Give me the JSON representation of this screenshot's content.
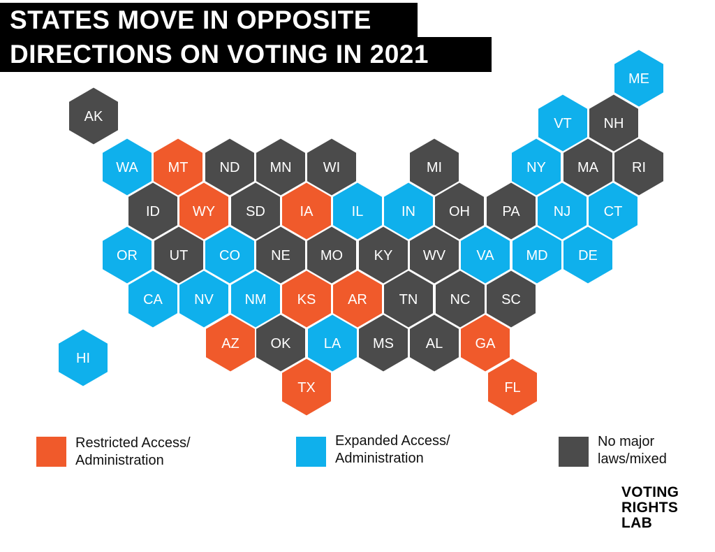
{
  "title": {
    "line1": "STATES MOVE IN OPPOSITE",
    "line2": "DIRECTIONS ON VOTING IN 2021"
  },
  "colors": {
    "restricted": "#f05a2b",
    "expanded": "#0fb0ec",
    "mixed": "#4b4b4b"
  },
  "states": [
    {
      "abbr": "AK",
      "category": "mixed"
    },
    {
      "abbr": "ME",
      "category": "expanded"
    },
    {
      "abbr": "VT",
      "category": "expanded"
    },
    {
      "abbr": "NH",
      "category": "mixed"
    },
    {
      "abbr": "WA",
      "category": "expanded"
    },
    {
      "abbr": "MT",
      "category": "restricted"
    },
    {
      "abbr": "ND",
      "category": "mixed"
    },
    {
      "abbr": "MN",
      "category": "mixed"
    },
    {
      "abbr": "WI",
      "category": "mixed"
    },
    {
      "abbr": "MI",
      "category": "mixed"
    },
    {
      "abbr": "NY",
      "category": "expanded"
    },
    {
      "abbr": "MA",
      "category": "mixed"
    },
    {
      "abbr": "RI",
      "category": "mixed"
    },
    {
      "abbr": "ID",
      "category": "mixed"
    },
    {
      "abbr": "WY",
      "category": "restricted"
    },
    {
      "abbr": "SD",
      "category": "mixed"
    },
    {
      "abbr": "IA",
      "category": "restricted"
    },
    {
      "abbr": "IL",
      "category": "expanded"
    },
    {
      "abbr": "IN",
      "category": "expanded"
    },
    {
      "abbr": "OH",
      "category": "mixed"
    },
    {
      "abbr": "PA",
      "category": "mixed"
    },
    {
      "abbr": "NJ",
      "category": "expanded"
    },
    {
      "abbr": "CT",
      "category": "expanded"
    },
    {
      "abbr": "OR",
      "category": "expanded"
    },
    {
      "abbr": "UT",
      "category": "mixed"
    },
    {
      "abbr": "CO",
      "category": "expanded"
    },
    {
      "abbr": "NE",
      "category": "mixed"
    },
    {
      "abbr": "MO",
      "category": "mixed"
    },
    {
      "abbr": "KY",
      "category": "mixed"
    },
    {
      "abbr": "WV",
      "category": "mixed"
    },
    {
      "abbr": "VA",
      "category": "expanded"
    },
    {
      "abbr": "MD",
      "category": "expanded"
    },
    {
      "abbr": "DE",
      "category": "expanded"
    },
    {
      "abbr": "CA",
      "category": "expanded"
    },
    {
      "abbr": "NV",
      "category": "expanded"
    },
    {
      "abbr": "NM",
      "category": "expanded"
    },
    {
      "abbr": "KS",
      "category": "restricted"
    },
    {
      "abbr": "AR",
      "category": "restricted"
    },
    {
      "abbr": "TN",
      "category": "mixed"
    },
    {
      "abbr": "NC",
      "category": "mixed"
    },
    {
      "abbr": "SC",
      "category": "mixed"
    },
    {
      "abbr": "HI",
      "category": "expanded"
    },
    {
      "abbr": "AZ",
      "category": "restricted"
    },
    {
      "abbr": "OK",
      "category": "mixed"
    },
    {
      "abbr": "LA",
      "category": "expanded"
    },
    {
      "abbr": "MS",
      "category": "mixed"
    },
    {
      "abbr": "AL",
      "category": "mixed"
    },
    {
      "abbr": "GA",
      "category": "restricted"
    },
    {
      "abbr": "TX",
      "category": "restricted"
    },
    {
      "abbr": "FL",
      "category": "restricted"
    }
  ],
  "legend": {
    "restricted": {
      "line1": "Restricted Access/",
      "line2": "Administration"
    },
    "expanded": {
      "line1": "Expanded Access/",
      "line2": "Administration"
    },
    "mixed": {
      "line1": "No major",
      "line2": "laws/mixed"
    }
  },
  "logo": {
    "line1": "VOTING",
    "line2": "RIGHTS",
    "line3": "LAB"
  }
}
